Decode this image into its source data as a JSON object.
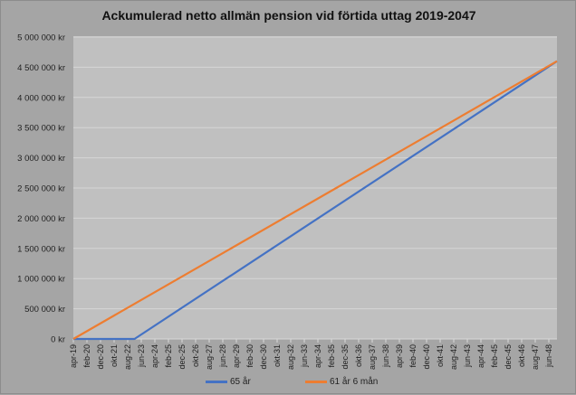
{
  "chart_data": {
    "type": "line",
    "title": "Ackumulerad netto allmän pension vid förtida uttag 2019-2047",
    "xlabel": "",
    "ylabel": "",
    "x_start": "apr-19",
    "x_end": "dec-48",
    "x_tick_labels": [
      "apr-19",
      "feb-20",
      "dec-20",
      "okt-21",
      "aug-22",
      "jun-23",
      "apr-24",
      "feb-25",
      "dec-25",
      "okt-26",
      "aug-27",
      "jun-28",
      "apr-29",
      "feb-30",
      "dec-30",
      "okt-31",
      "aug-32",
      "jun-33",
      "apr-34",
      "feb-35",
      "dec-35",
      "okt-36",
      "aug-37",
      "jun-38",
      "apr-39",
      "feb-40",
      "dec-40",
      "okt-41",
      "aug-42",
      "jun-43",
      "apr-44",
      "feb-45",
      "dec-45",
      "okt-46",
      "aug-47",
      "jun-48"
    ],
    "y_tick_labels": [
      "0 kr",
      "500 000 kr",
      "1 000 000 kr",
      "1 500 000 kr",
      "2 000 000 kr",
      "2 500 000 kr",
      "3 000 000 kr",
      "3 500 000 kr",
      "4 000 000 kr",
      "4 500 000 kr",
      "5 000 000 kr"
    ],
    "ylim": [
      0,
      5000000
    ],
    "grid": "horizontal",
    "legend_position": "bottom",
    "series": [
      {
        "name": "65 år",
        "color": "#4472c4",
        "points": [
          [
            "apr-19",
            0
          ],
          [
            "jan-23",
            0
          ],
          [
            "dec-48",
            4600000
          ]
        ]
      },
      {
        "name": "61 år 6 mån",
        "color": "#ed7d31",
        "points": [
          [
            "apr-19",
            0
          ],
          [
            "dec-48",
            4600000
          ]
        ]
      }
    ]
  }
}
